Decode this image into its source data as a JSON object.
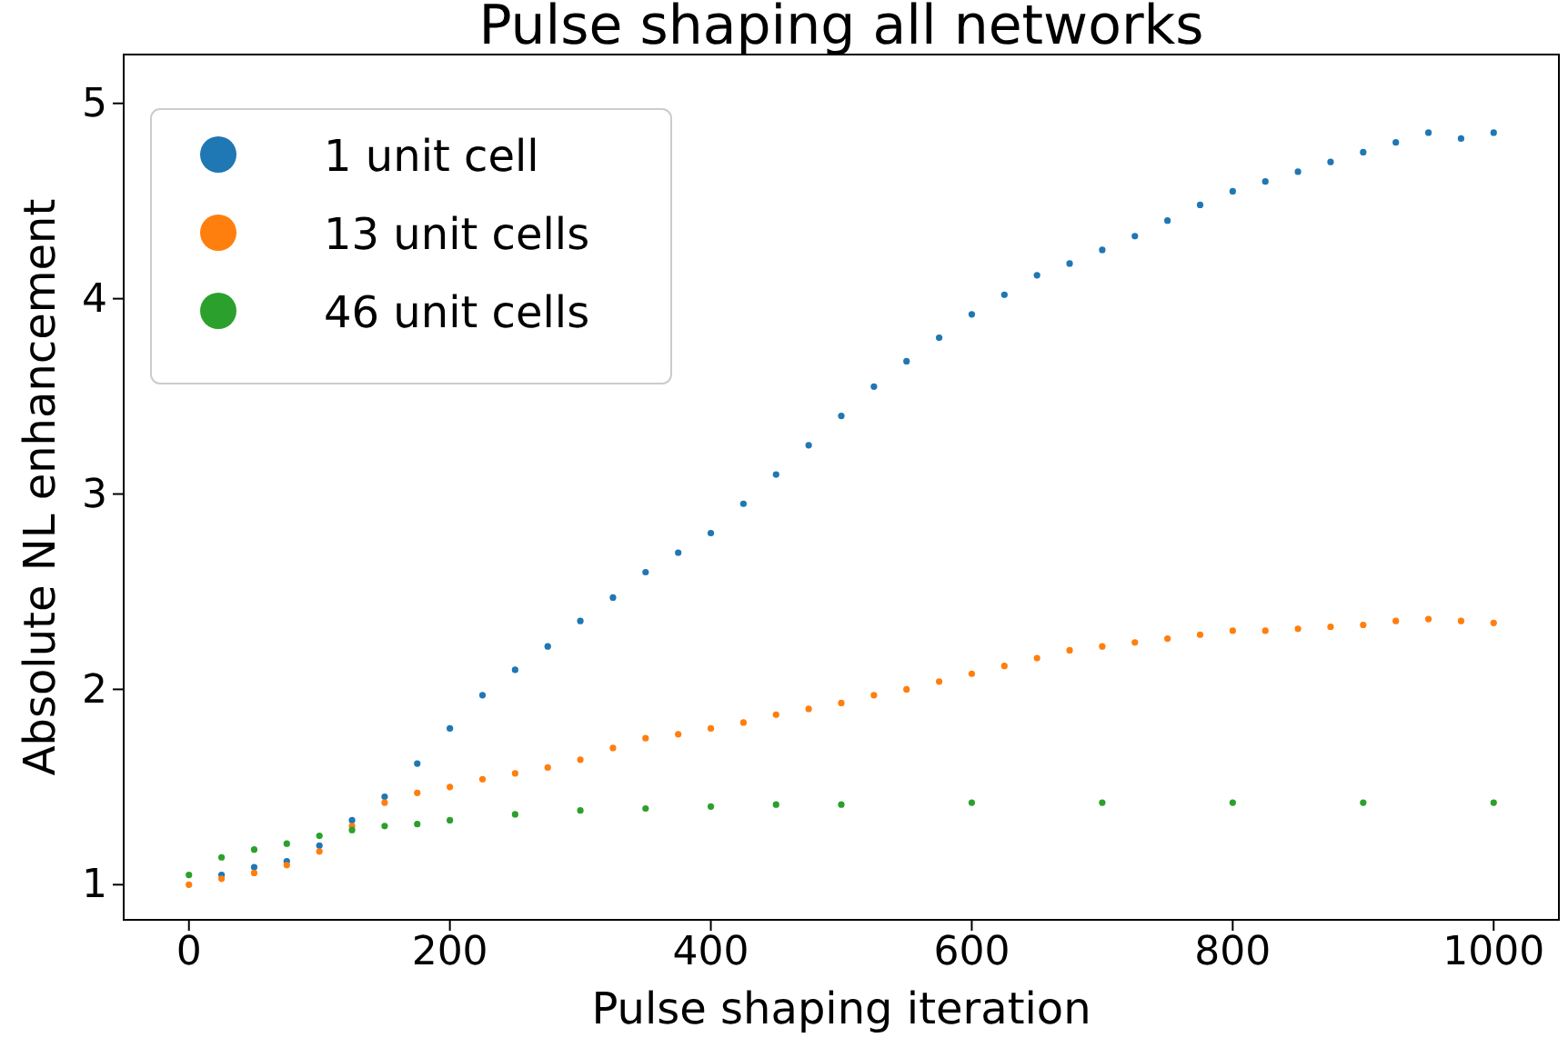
{
  "chart_data": {
    "type": "scatter",
    "title": "Pulse shaping all networks",
    "xlabel": "Pulse shaping iteration",
    "ylabel": "Absolute NL enhancement",
    "xlim": [
      -50,
      1050
    ],
    "ylim": [
      0.82,
      5.25
    ],
    "xticks": [
      0,
      200,
      400,
      600,
      800,
      1000
    ],
    "yticks": [
      1,
      2,
      3,
      4,
      5
    ],
    "legend": "top left",
    "marker": "circle",
    "grid": false,
    "series": [
      {
        "name": "1 unit cell",
        "color": "#1f77b4",
        "x": [
          25,
          50,
          75,
          100,
          125,
          150,
          175,
          200,
          225,
          250,
          275,
          300,
          325,
          350,
          375,
          400,
          425,
          450,
          475,
          500,
          525,
          550,
          575,
          600,
          625,
          650,
          675,
          700,
          725,
          750,
          775,
          800,
          825,
          850,
          875,
          900,
          925,
          950,
          975,
          1000
        ],
        "values": [
          1.05,
          1.09,
          1.12,
          1.2,
          1.33,
          1.45,
          1.62,
          1.8,
          1.97,
          2.1,
          2.22,
          2.35,
          2.47,
          2.6,
          2.7,
          2.8,
          2.95,
          3.1,
          3.25,
          3.4,
          3.55,
          3.68,
          3.8,
          3.92,
          4.02,
          4.12,
          4.18,
          4.25,
          4.32,
          4.4,
          4.48,
          4.55,
          4.6,
          4.65,
          4.7,
          4.75,
          4.8,
          4.85,
          4.82,
          4.85
        ]
      },
      {
        "name": "13 unit cells",
        "color": "#ff7f0e",
        "x": [
          0,
          25,
          50,
          75,
          100,
          125,
          150,
          175,
          200,
          225,
          250,
          275,
          300,
          325,
          350,
          375,
          400,
          425,
          450,
          475,
          500,
          525,
          550,
          575,
          600,
          625,
          650,
          675,
          700,
          725,
          750,
          775,
          800,
          825,
          850,
          875,
          900,
          925,
          950,
          975,
          1000
        ],
        "values": [
          1.0,
          1.03,
          1.06,
          1.1,
          1.17,
          1.3,
          1.42,
          1.47,
          1.5,
          1.54,
          1.57,
          1.6,
          1.64,
          1.7,
          1.75,
          1.77,
          1.8,
          1.83,
          1.87,
          1.9,
          1.93,
          1.97,
          2.0,
          2.04,
          2.08,
          2.12,
          2.16,
          2.2,
          2.22,
          2.24,
          2.26,
          2.28,
          2.3,
          2.3,
          2.31,
          2.32,
          2.33,
          2.35,
          2.36,
          2.35,
          2.34
        ]
      },
      {
        "name": "46 unit cells",
        "color": "#2ca02c",
        "x": [
          0,
          25,
          50,
          75,
          100,
          125,
          150,
          175,
          200,
          250,
          300,
          350,
          400,
          450,
          500,
          600,
          700,
          800,
          900,
          1000
        ],
        "values": [
          1.05,
          1.14,
          1.18,
          1.21,
          1.25,
          1.28,
          1.3,
          1.31,
          1.33,
          1.36,
          1.38,
          1.39,
          1.4,
          1.41,
          1.41,
          1.42,
          1.42,
          1.42,
          1.42,
          1.42
        ]
      }
    ]
  }
}
